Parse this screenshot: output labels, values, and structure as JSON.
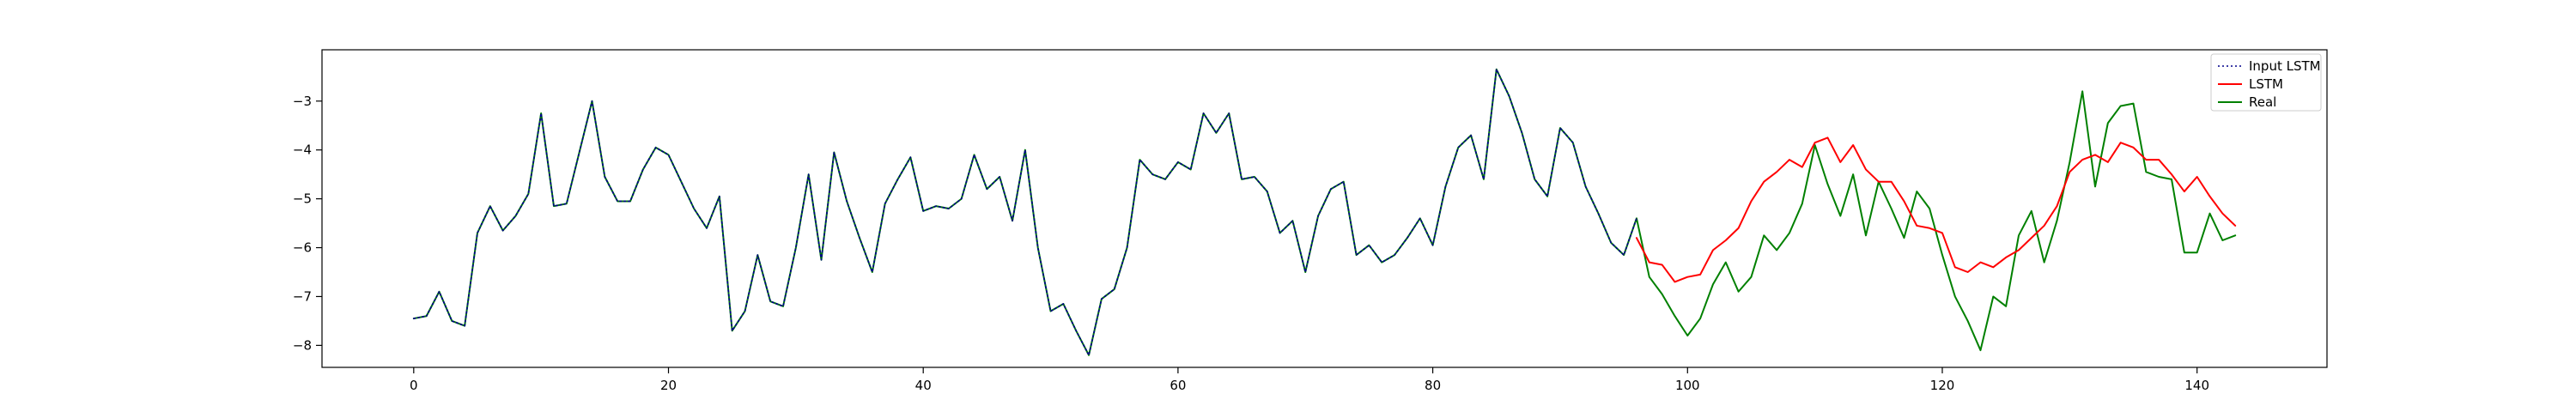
{
  "chart_data": {
    "type": "line",
    "title": "",
    "xlabel": "",
    "ylabel": "",
    "xlim": [
      -7.2,
      150.2
    ],
    "ylim": [
      -8.45,
      -1.95
    ],
    "xticks": [
      0,
      20,
      40,
      60,
      80,
      100,
      120,
      140
    ],
    "yticks": [
      -8,
      -7,
      -6,
      -5,
      -4,
      -3
    ],
    "grid": false,
    "legend_position": "top-right",
    "series": [
      {
        "name": "Input LSTM",
        "color": "#00008b",
        "style": "dotted",
        "x": [
          0,
          1,
          2,
          3,
          4,
          5,
          6,
          7,
          8,
          9,
          10,
          11,
          12,
          13,
          14,
          15,
          16,
          17,
          18,
          19,
          20,
          21,
          22,
          23,
          24,
          25,
          26,
          27,
          28,
          29,
          30,
          31,
          32,
          33,
          34,
          35,
          36,
          37,
          38,
          39,
          40,
          41,
          42,
          43,
          44,
          45,
          46,
          47,
          48,
          49,
          50,
          51,
          52,
          53,
          54,
          55,
          56,
          57,
          58,
          59,
          60,
          61,
          62,
          63,
          64,
          65,
          66,
          67,
          68,
          69,
          70,
          71,
          72,
          73,
          74,
          75,
          76,
          77,
          78,
          79,
          80,
          81,
          82,
          83,
          84,
          85,
          86,
          87,
          88,
          89,
          90,
          91,
          92,
          93,
          94,
          95,
          96
        ],
        "values": [
          -7.45,
          -7.4,
          -6.9,
          -7.5,
          -7.6,
          -5.7,
          -5.15,
          -5.65,
          -5.35,
          -4.9,
          -3.25,
          -5.15,
          -5.1,
          -4.05,
          -3,
          -4.55,
          -5.05,
          -5.05,
          -4.4,
          -3.95,
          -4.1,
          -4.65,
          -5.2,
          -5.6,
          -4.95,
          -7.7,
          -7.3,
          -6.15,
          -7.1,
          -7.2,
          -6,
          -4.5,
          -6.25,
          -4.05,
          -5.05,
          -5.8,
          -6.5,
          -5.1,
          -4.6,
          -4.15,
          -5.25,
          -5.15,
          -5.2,
          -5,
          -4.1,
          -4.8,
          -4.55,
          -5.45,
          -4,
          -6,
          -7.3,
          -7.15,
          -7.7,
          -8.2,
          -7.05,
          -6.85,
          -6,
          -4.2,
          -4.5,
          -4.6,
          -4.25,
          -4.4,
          -3.25,
          -3.65,
          -3.25,
          -4.6,
          -4.55,
          -4.85,
          -5.7,
          -5.45,
          -6.5,
          -5.35,
          -4.8,
          -4.65,
          -6.15,
          -5.95,
          -6.3,
          -6.15,
          -5.8,
          -5.4,
          -5.95,
          -4.75,
          -3.95,
          -3.7,
          -4.6,
          -2.35,
          -2.9,
          -3.65,
          -4.6,
          -4.95,
          -3.55,
          -3.85,
          -4.75,
          -5.3,
          -5.9,
          -6.15,
          -5.4
        ]
      },
      {
        "name": "LSTM",
        "color": "#ff0000",
        "style": "solid",
        "x": [
          96,
          97,
          98,
          99,
          100,
          101,
          102,
          103,
          104,
          105,
          106,
          107,
          108,
          109,
          110,
          111,
          112,
          113,
          114,
          115,
          116,
          117,
          118,
          119,
          120,
          121,
          122,
          123,
          124,
          125,
          126,
          127,
          128,
          129,
          130,
          131,
          132,
          133,
          134,
          135,
          136,
          137,
          138,
          139,
          140,
          141,
          142,
          143
        ],
        "values": [
          -5.8,
          -6.3,
          -6.35,
          -6.7,
          -6.6,
          -6.55,
          -6.05,
          -5.85,
          -5.6,
          -5.05,
          -4.65,
          -4.45,
          -4.2,
          -4.35,
          -3.85,
          -3.75,
          -4.25,
          -3.9,
          -4.4,
          -4.65,
          -4.65,
          -5.05,
          -5.55,
          -5.6,
          -5.7,
          -6.4,
          -6.5,
          -6.3,
          -6.4,
          -6.2,
          -6.05,
          -5.8,
          -5.55,
          -5.15,
          -4.45,
          -4.2,
          -4.1,
          -4.25,
          -3.85,
          -3.95,
          -4.2,
          -4.2,
          -4.5,
          -4.85,
          -4.55,
          -4.95,
          -5.3,
          -5.55
        ]
      },
      {
        "name": "Real",
        "color": "#008000",
        "style": "solid",
        "x": [
          0,
          1,
          2,
          3,
          4,
          5,
          6,
          7,
          8,
          9,
          10,
          11,
          12,
          13,
          14,
          15,
          16,
          17,
          18,
          19,
          20,
          21,
          22,
          23,
          24,
          25,
          26,
          27,
          28,
          29,
          30,
          31,
          32,
          33,
          34,
          35,
          36,
          37,
          38,
          39,
          40,
          41,
          42,
          43,
          44,
          45,
          46,
          47,
          48,
          49,
          50,
          51,
          52,
          53,
          54,
          55,
          56,
          57,
          58,
          59,
          60,
          61,
          62,
          63,
          64,
          65,
          66,
          67,
          68,
          69,
          70,
          71,
          72,
          73,
          74,
          75,
          76,
          77,
          78,
          79,
          80,
          81,
          82,
          83,
          84,
          85,
          86,
          87,
          88,
          89,
          90,
          91,
          92,
          93,
          94,
          95,
          96,
          97,
          98,
          99,
          100,
          101,
          102,
          103,
          104,
          105,
          106,
          107,
          108,
          109,
          110,
          111,
          112,
          113,
          114,
          115,
          116,
          117,
          118,
          119,
          120,
          121,
          122,
          123,
          124,
          125,
          126,
          127,
          128,
          129,
          130,
          131,
          132,
          133,
          134,
          135,
          136,
          137,
          138,
          139,
          140,
          141,
          142,
          143
        ],
        "values": [
          -7.45,
          -7.4,
          -6.9,
          -7.5,
          -7.6,
          -5.7,
          -5.15,
          -5.65,
          -5.35,
          -4.9,
          -3.25,
          -5.15,
          -5.1,
          -4.05,
          -3,
          -4.55,
          -5.05,
          -5.05,
          -4.4,
          -3.95,
          -4.1,
          -4.65,
          -5.2,
          -5.6,
          -4.95,
          -7.7,
          -7.3,
          -6.15,
          -7.1,
          -7.2,
          -6,
          -4.5,
          -6.25,
          -4.05,
          -5.05,
          -5.8,
          -6.5,
          -5.1,
          -4.6,
          -4.15,
          -5.25,
          -5.15,
          -5.2,
          -5,
          -4.1,
          -4.8,
          -4.55,
          -5.45,
          -4,
          -6,
          -7.3,
          -7.15,
          -7.7,
          -8.2,
          -7.05,
          -6.85,
          -6,
          -4.2,
          -4.5,
          -4.6,
          -4.25,
          -4.4,
          -3.25,
          -3.65,
          -3.25,
          -4.6,
          -4.55,
          -4.85,
          -5.7,
          -5.45,
          -6.5,
          -5.35,
          -4.8,
          -4.65,
          -6.15,
          -5.95,
          -6.3,
          -6.15,
          -5.8,
          -5.4,
          -5.95,
          -4.75,
          -3.95,
          -3.7,
          -4.6,
          -2.35,
          -2.9,
          -3.65,
          -4.6,
          -4.95,
          -3.55,
          -3.85,
          -4.75,
          -5.3,
          -5.9,
          -6.15,
          -5.4,
          -6.6,
          -6.95,
          -7.4,
          -7.8,
          -7.45,
          -6.75,
          -6.3,
          -6.9,
          -6.6,
          -5.75,
          -6.05,
          -5.7,
          -5.1,
          -3.9,
          -4.7,
          -5.35,
          -4.5,
          -5.75,
          -4.65,
          -5.2,
          -5.8,
          -4.85,
          -5.2,
          -6.15,
          -7,
          -7.5,
          -8.1,
          -7,
          -7.2,
          -5.75,
          -5.25,
          -6.3,
          -5.45,
          -4.25,
          -2.8,
          -4.75,
          -3.45,
          -3.1,
          -3.05,
          -4.45,
          -4.55,
          -4.6,
          -6.1,
          -6.1,
          -5.3,
          -5.85,
          -5.75
        ]
      }
    ]
  }
}
